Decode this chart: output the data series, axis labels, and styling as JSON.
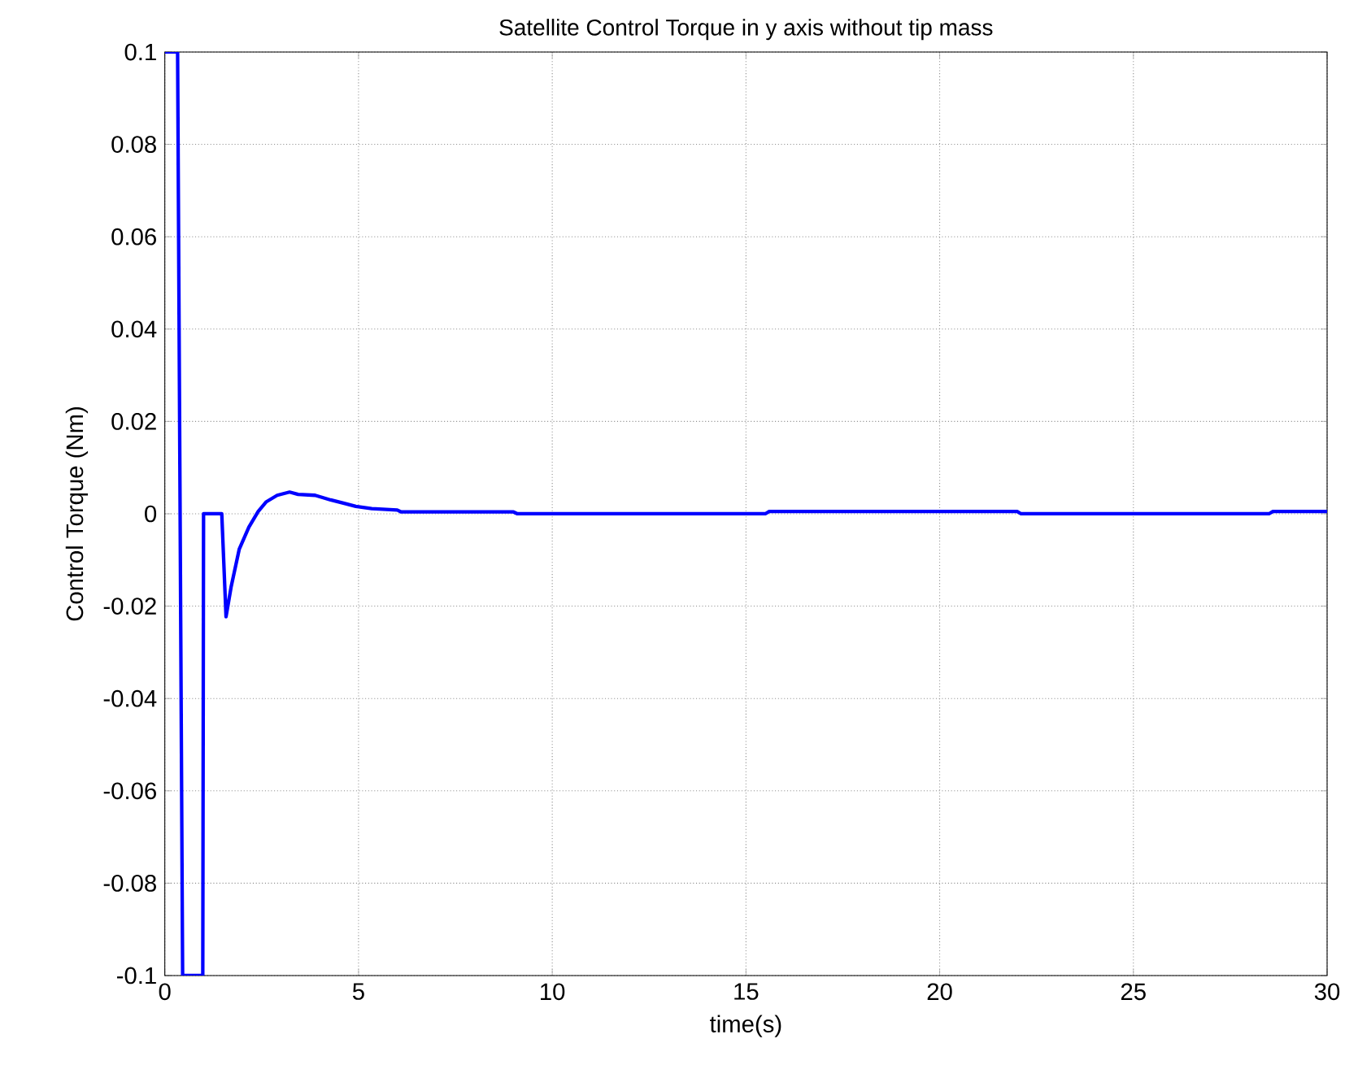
{
  "chart_data": {
    "type": "line",
    "title": "Satellite Control Torque in y axis without tip mass",
    "xlabel": "time(s)",
    "ylabel": "Control Torque (Nm)",
    "xlim": [
      0,
      30
    ],
    "ylim": [
      -0.1,
      0.1
    ],
    "xticks": [
      0,
      5,
      10,
      15,
      20,
      25,
      30
    ],
    "yticks": [
      -0.1,
      -0.08,
      -0.06,
      -0.04,
      -0.02,
      0,
      0.02,
      0.04,
      0.06,
      0.08,
      0.1
    ],
    "grid": true,
    "line_style": "solid",
    "marker": "none",
    "series": [
      {
        "color": "#0000ff",
        "x": [
          0,
          0.33,
          0.46,
          0.98,
          1.0,
          1.47,
          1.58,
          1.71,
          1.92,
          2.17,
          2.41,
          2.62,
          2.9,
          3.22,
          3.44,
          3.88,
          4.28,
          4.61,
          4.93,
          5.34,
          6.0,
          6.1,
          9.0,
          9.1,
          15.5,
          15.6,
          22.0,
          22.1,
          28.5,
          28.6,
          30
        ],
        "values": [
          0.1,
          0.1,
          -0.1,
          -0.1,
          0,
          0,
          -0.0223,
          -0.0159,
          -0.0077,
          -0.0029,
          0.0005,
          0.0026,
          0.004,
          0.0047,
          0.0042,
          0.004,
          0.003,
          0.0023,
          0.0016,
          0.0011,
          0.0008,
          0.0004,
          0.0004,
          0,
          0,
          0.0005,
          0.0005,
          0,
          0,
          0.0005,
          0.0005
        ]
      }
    ]
  }
}
